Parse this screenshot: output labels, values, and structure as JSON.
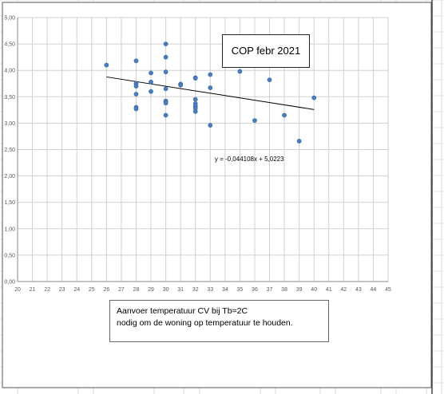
{
  "chart_data": {
    "type": "scatter",
    "title": "COP  febr  2021",
    "caption_lines": [
      "Aanvoer temperatuur CV bij Tb=2C",
      "nodig om de woning op temperatuur te houden."
    ],
    "trendline_label": "y = -0,044108x + 5,0223",
    "trendline": {
      "slope": -0.044108,
      "intercept": 5.0223,
      "x_range": [
        26,
        40
      ]
    },
    "xlim": [
      20,
      45
    ],
    "ylim": [
      0,
      5
    ],
    "x_ticks": [
      20,
      21,
      22,
      23,
      24,
      25,
      26,
      27,
      28,
      29,
      30,
      31,
      32,
      33,
      34,
      35,
      36,
      37,
      38,
      39,
      40,
      41,
      42,
      43,
      44,
      45
    ],
    "y_ticks": [
      0,
      0.5,
      1,
      1.5,
      2,
      2.5,
      3,
      3.5,
      4,
      4.5,
      5
    ],
    "y_tick_labels": [
      "0,00",
      "0,50",
      "1,00",
      "1,50",
      "2,00",
      "2,50",
      "3,00",
      "3,50",
      "4,00",
      "4,50",
      "5,00"
    ],
    "grid": true,
    "series": [
      {
        "color": "#4a7ebb",
        "points": [
          [
            26,
            4.1
          ],
          [
            28,
            4.18
          ],
          [
            28,
            3.75
          ],
          [
            28,
            3.7
          ],
          [
            28,
            3.55
          ],
          [
            28,
            3.3
          ],
          [
            28,
            3.27
          ],
          [
            29,
            3.95
          ],
          [
            29,
            3.78
          ],
          [
            29,
            3.6
          ],
          [
            30,
            4.5
          ],
          [
            30,
            4.25
          ],
          [
            30,
            3.97
          ],
          [
            30,
            3.65
          ],
          [
            30,
            3.42
          ],
          [
            30,
            3.38
          ],
          [
            30,
            3.15
          ],
          [
            31,
            3.74
          ],
          [
            31,
            3.72
          ],
          [
            32,
            3.86
          ],
          [
            32,
            3.85
          ],
          [
            32,
            3.45
          ],
          [
            32,
            3.37
          ],
          [
            32,
            3.32
          ],
          [
            32,
            3.28
          ],
          [
            32,
            3.22
          ],
          [
            33,
            3.92
          ],
          [
            33,
            3.67
          ],
          [
            33,
            2.96
          ],
          [
            35,
            3.98
          ],
          [
            36,
            3.05
          ],
          [
            37,
            3.82
          ],
          [
            38,
            3.15
          ],
          [
            39,
            2.66
          ],
          [
            40,
            3.48
          ]
        ]
      }
    ],
    "trendline_color": "#000000"
  }
}
